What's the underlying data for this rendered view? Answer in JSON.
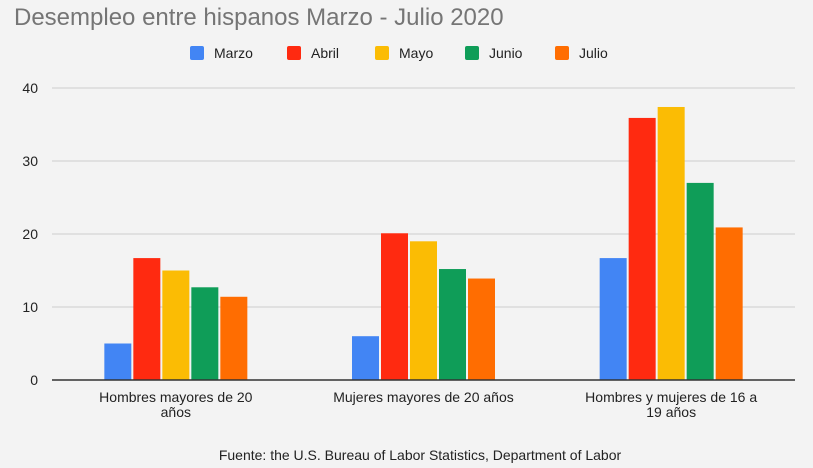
{
  "chart_data": {
    "type": "bar",
    "title": "Desempleo entre hispanos Marzo - Julio 2020",
    "categories": [
      [
        "Hombres mayores de 20",
        "años"
      ],
      [
        "Mujeres mayores de 20 años"
      ],
      [
        "Hombres y mujeres de 16 a",
        "19 años"
      ]
    ],
    "series": [
      {
        "name": "Marzo",
        "color": "#4285f4",
        "values": [
          5.0,
          6.0,
          16.7
        ]
      },
      {
        "name": "Abril",
        "color": "#ff2a10",
        "values": [
          16.7,
          20.1,
          35.9
        ]
      },
      {
        "name": "Mayo",
        "color": "#fbbc04",
        "values": [
          15.0,
          19.0,
          37.4
        ]
      },
      {
        "name": "Junio",
        "color": "#0f9d58",
        "values": [
          12.7,
          15.2,
          27.0
        ]
      },
      {
        "name": "Julio",
        "color": "#ff6d01",
        "values": [
          11.4,
          13.9,
          20.9
        ]
      }
    ],
    "ylim": [
      0,
      40
    ],
    "yticks": [
      0,
      10,
      20,
      30,
      40
    ],
    "grid": true,
    "legend_position": "top",
    "xlabel": "",
    "ylabel": ""
  },
  "source": "Fuente:  the U.S. Bureau of Labor Statistics, Department of Labor"
}
